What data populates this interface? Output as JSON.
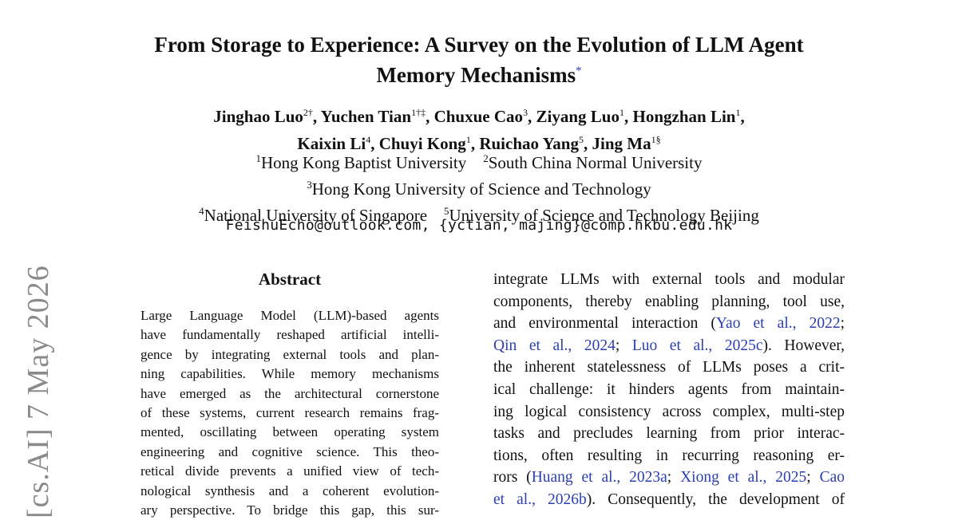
{
  "paper": {
    "title_line1": "From Storage to Experience: A Survey on the Evolution of LLM Agent",
    "title_line2": "Memory Mechanisms",
    "title_mark": "*",
    "authors_line1": [
      {
        "name": "Jinghao Luo",
        "sup": "2†",
        "sep": ", "
      },
      {
        "name": "Yuchen Tian",
        "sup": "1†‡",
        "sep": ", "
      },
      {
        "name": "Chuxue Cao",
        "sup": "3",
        "sep": ", "
      },
      {
        "name": "Ziyang Luo",
        "sup": "1",
        "sep": ", "
      },
      {
        "name": "Hongzhan Lin",
        "sup": "1",
        "sep": ","
      }
    ],
    "authors_line2": [
      {
        "name": "Kaixin Li",
        "sup": "4",
        "sep": ", "
      },
      {
        "name": "Chuyi Kong",
        "sup": "1",
        "sep": ", "
      },
      {
        "name": "Ruichao Yang",
        "sup": "5",
        "sep": ", "
      },
      {
        "name": "Jing Ma",
        "sup": "1§",
        "sep": ""
      }
    ],
    "affiliations": {
      "line1": [
        {
          "sup": "1",
          "text": "Hong Kong Baptist University"
        },
        {
          "sup": "2",
          "text": "South China Normal University"
        }
      ],
      "line2": [
        {
          "sup": "3",
          "text": "Hong Kong University of Science and Technology"
        }
      ],
      "line3": [
        {
          "sup": "4",
          "text": "National University of Singapore"
        },
        {
          "sup": "5",
          "text": "University of Science and Technology Beijing"
        }
      ]
    },
    "email": "FeishuEcho@outlook.com, {yctian, majing}@comp.hkbu.edu.hk",
    "abstract_heading": "Abstract",
    "abstract_lines": [
      "Large Language Model (LLM)-based agents",
      "have fundamentally reshaped artificial intelli-",
      "gence by integrating external tools and plan-",
      "ning capabilities. While memory mechanisms",
      "have emerged as the architectural cornerstone",
      "of these systems, current research remains frag-",
      "mented, oscillating between operating system",
      "engineering and cognitive science. This theo-",
      "retical divide prevents a unified view of tech-",
      "nological synthesis and a coherent evolution-",
      "ary perspective. To bridge this gap, this sur-"
    ],
    "intro_lines": [
      [
        {
          "t": "integrate LLMs with external tools and modular"
        }
      ],
      [
        {
          "t": "components, thereby enabling planning, tool use,"
        }
      ],
      [
        {
          "t": "and environmental interaction ("
        },
        {
          "t": "Yao et al., 2022",
          "c": true
        },
        {
          "t": ";"
        }
      ],
      [
        {
          "t": "Qin et al., 2024",
          "c": true
        },
        {
          "t": "; "
        },
        {
          "t": "Luo et al., 2025c",
          "c": true
        },
        {
          "t": ").  However,"
        }
      ],
      [
        {
          "t": "the inherent statelessness of LLMs poses a crit-"
        }
      ],
      [
        {
          "t": "ical challenge: it hinders agents from maintain-"
        }
      ],
      [
        {
          "t": "ing logical consistency across complex, multi-step"
        }
      ],
      [
        {
          "t": "tasks and precludes learning from prior interac-"
        }
      ],
      [
        {
          "t": "tions, often resulting in recurring reasoning er-"
        }
      ],
      [
        {
          "t": "rors ("
        },
        {
          "t": "Huang et al., 2023a",
          "c": true
        },
        {
          "t": "; "
        },
        {
          "t": "Xiong et al., 2025",
          "c": true
        },
        {
          "t": "; "
        },
        {
          "t": "Cao",
          "c": true
        }
      ],
      [
        {
          "t": "et al., 2026b",
          "c": true
        },
        {
          "t": "). Consequently, the development of"
        }
      ]
    ],
    "sidebar_stamp": "[cs.AI]  7 May 2026",
    "colors": {
      "citation": "#2b3fb0",
      "stamp": "#8a8a8a"
    }
  }
}
